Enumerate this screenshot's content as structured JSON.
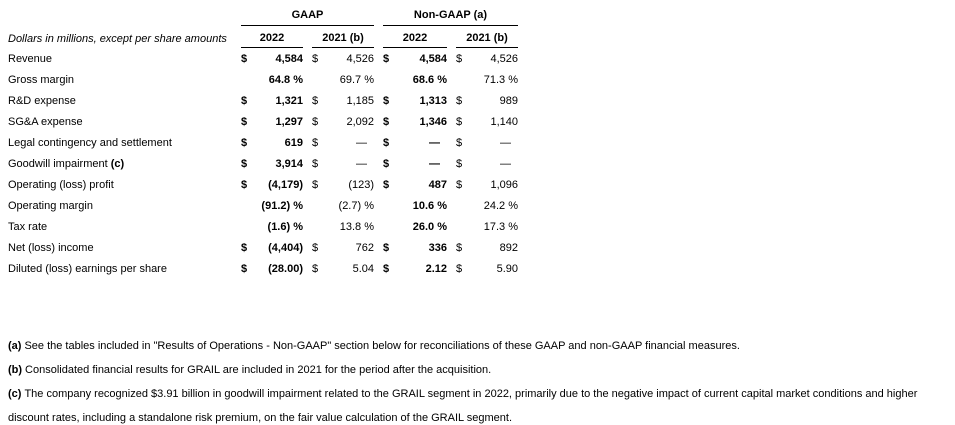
{
  "table": {
    "caption": "Dollars in millions, except per share amounts",
    "groups": [
      {
        "label": "GAAP"
      },
      {
        "label": "Non-GAAP (a)"
      }
    ],
    "col_headers": [
      "2022",
      "2021 (b)",
      "2022",
      "2021 (b)"
    ],
    "rows": [
      {
        "label": "Revenue",
        "note": "",
        "cells": [
          {
            "d": "$",
            "v": "4,584"
          },
          {
            "d": "$",
            "v": "4,526"
          },
          {
            "d": "$",
            "v": "4,584"
          },
          {
            "d": "$",
            "v": "4,526"
          }
        ]
      },
      {
        "label": "Gross margin",
        "note": "",
        "cells": [
          {
            "v": "64.8",
            "p": true
          },
          {
            "v": "69.7",
            "p": true
          },
          {
            "v": "68.6",
            "p": true
          },
          {
            "v": "71.3",
            "p": true
          }
        ]
      },
      {
        "label": "R&D expense",
        "note": "",
        "cells": [
          {
            "d": "$",
            "v": "1,321"
          },
          {
            "d": "$",
            "v": "1,185"
          },
          {
            "d": "$",
            "v": "1,313"
          },
          {
            "d": "$",
            "v": "989"
          }
        ]
      },
      {
        "label": "SG&A expense",
        "note": "",
        "cells": [
          {
            "d": "$",
            "v": "1,297"
          },
          {
            "d": "$",
            "v": "2,092"
          },
          {
            "d": "$",
            "v": "1,346"
          },
          {
            "d": "$",
            "v": "1,140"
          }
        ]
      },
      {
        "label": "Legal contingency and settlement",
        "note": "",
        "cells": [
          {
            "d": "$",
            "v": "619"
          },
          {
            "d": "$",
            "v": "—",
            "dash": true
          },
          {
            "d": "$",
            "v": "—",
            "dash": true
          },
          {
            "d": "$",
            "v": "—",
            "dash": true
          }
        ]
      },
      {
        "label": "Goodwill impairment",
        "note": "(c)",
        "cells": [
          {
            "d": "$",
            "v": "3,914"
          },
          {
            "d": "$",
            "v": "—",
            "dash": true
          },
          {
            "d": "$",
            "v": "—",
            "dash": true
          },
          {
            "d": "$",
            "v": "—",
            "dash": true
          }
        ]
      },
      {
        "label": "Operating (loss) profit",
        "note": "",
        "cells": [
          {
            "d": "$",
            "v": "(4,179)"
          },
          {
            "d": "$",
            "v": "(123)"
          },
          {
            "d": "$",
            "v": "487"
          },
          {
            "d": "$",
            "v": "1,096"
          }
        ]
      },
      {
        "label": "Operating margin",
        "note": "",
        "cells": [
          {
            "v": "(91.2)",
            "p": true
          },
          {
            "v": "(2.7)",
            "p": true
          },
          {
            "v": "10.6",
            "p": true
          },
          {
            "v": "24.2",
            "p": true
          }
        ]
      },
      {
        "label": "Tax rate",
        "note": "",
        "cells": [
          {
            "v": "(1.6)",
            "p": true
          },
          {
            "v": "13.8",
            "p": true
          },
          {
            "v": "26.0",
            "p": true
          },
          {
            "v": "17.3",
            "p": true
          }
        ]
      },
      {
        "label": "Net (loss) income",
        "note": "",
        "cells": [
          {
            "d": "$",
            "v": "(4,404)"
          },
          {
            "d": "$",
            "v": "762"
          },
          {
            "d": "$",
            "v": "336"
          },
          {
            "d": "$",
            "v": "892"
          }
        ]
      },
      {
        "label": "Diluted (loss) earnings per share",
        "note": "",
        "cells": [
          {
            "d": "$",
            "v": "(28.00)"
          },
          {
            "d": "$",
            "v": "5.04"
          },
          {
            "d": "$",
            "v": "2.12"
          },
          {
            "d": "$",
            "v": "5.90"
          }
        ]
      }
    ]
  },
  "footnotes": [
    {
      "tag": "(a)",
      "text": "See the tables included in \"Results of Operations - Non-GAAP\" section below for reconciliations of these GAAP and non-GAAP financial measures."
    },
    {
      "tag": "(b)",
      "text": "Consolidated financial results for GRAIL are included in 2021 for the period after the acquisition."
    },
    {
      "tag": "(c)",
      "text": "The company recognized $3.91 billion in goodwill impairment related to the GRAIL segment in 2022, primarily due to the negative impact of current capital market conditions and higher discount rates, including a standalone risk premium, on the fair value calculation of the GRAIL segment."
    }
  ],
  "colors": {
    "text": "#000000",
    "rule": "#000000",
    "background": "#ffffff"
  }
}
